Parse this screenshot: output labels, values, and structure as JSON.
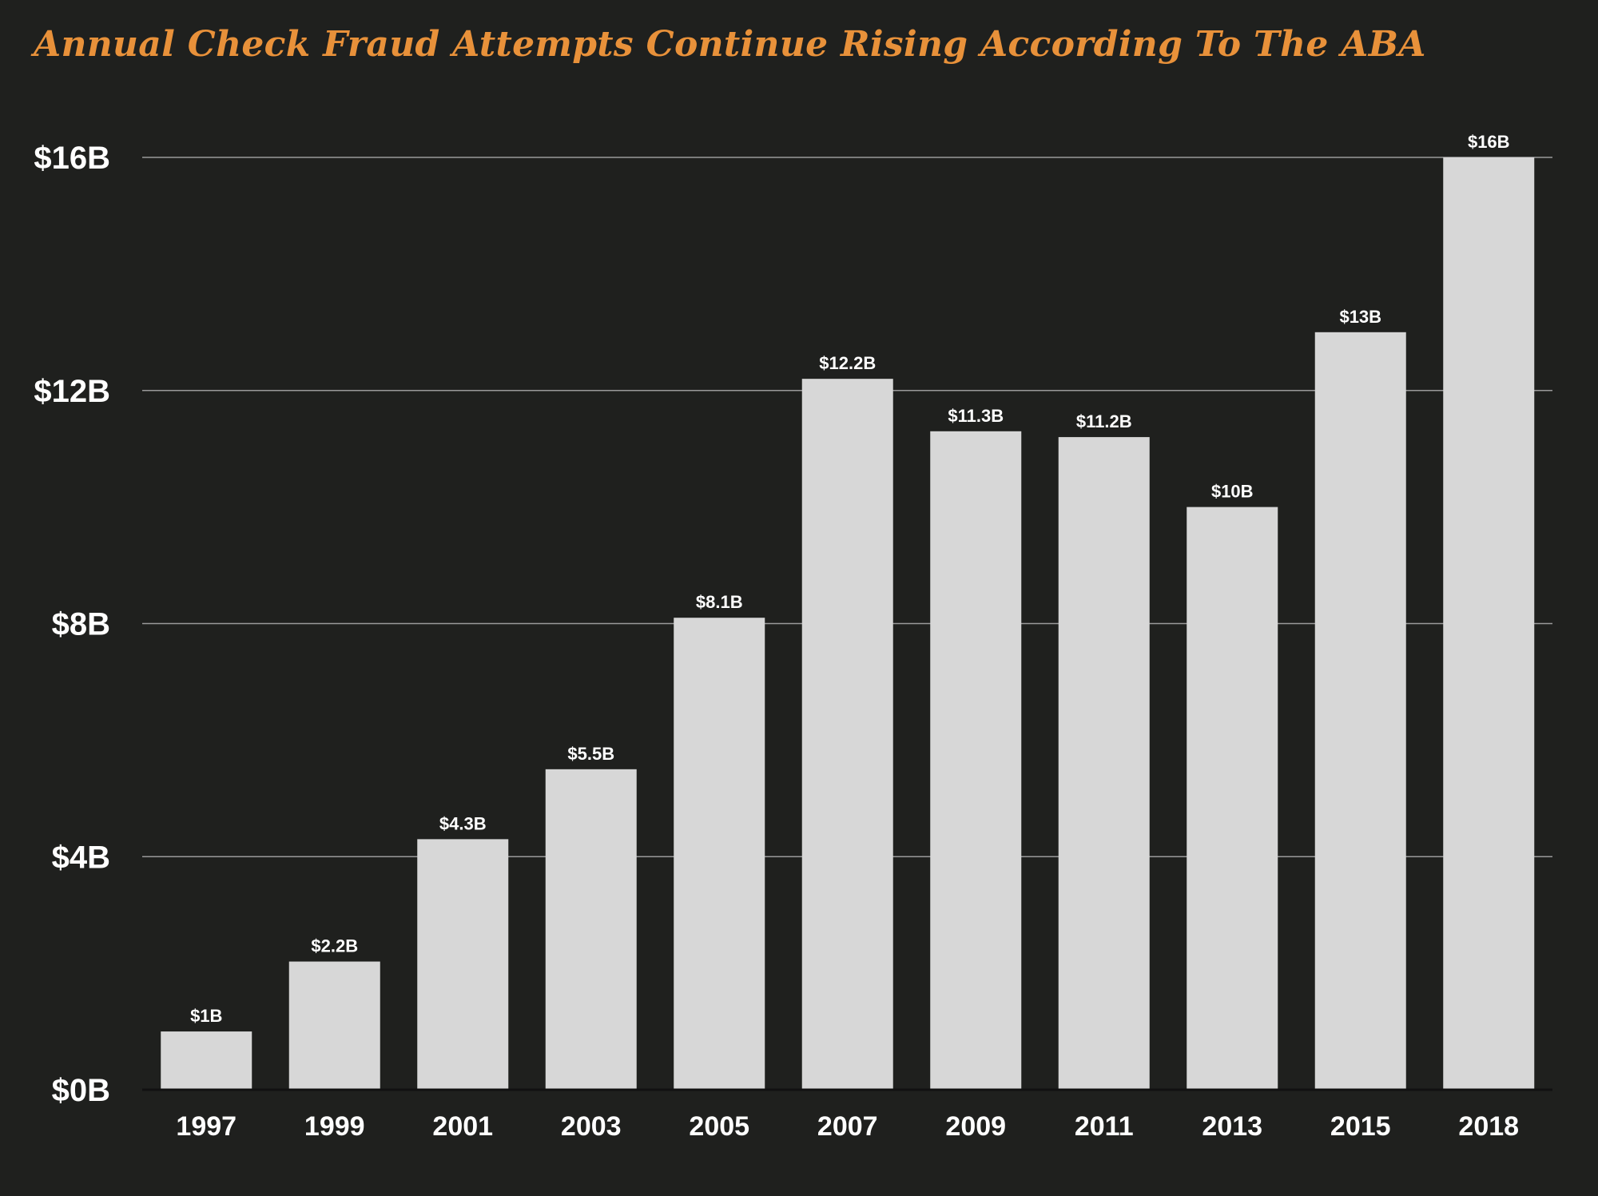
{
  "chart_data": {
    "type": "bar",
    "title": "Annual Check Fraud Attempts Continue Rising According To The ABA",
    "xlabel": "",
    "ylabel": "",
    "categories": [
      "1997",
      "1999",
      "2001",
      "2003",
      "2005",
      "2007",
      "2009",
      "2011",
      "2013",
      "2015",
      "2018"
    ],
    "values": [
      1,
      2.2,
      4.3,
      5.5,
      8.1,
      12.2,
      11.3,
      11.2,
      10,
      13,
      16
    ],
    "data_labels": [
      "$1B",
      "$2.2B",
      "$4.3B",
      "$5.5B",
      "$8.1B",
      "$12.2B",
      "$11.3B",
      "$11.2B",
      "$10B",
      "$13B",
      "$16B"
    ],
    "ylim": [
      0,
      16
    ],
    "yticks": [
      0,
      4,
      8,
      12,
      16
    ],
    "ytick_labels": [
      "$0B",
      "$4B",
      "$8B",
      "$12B",
      "$16B"
    ],
    "grid": true,
    "legend": "none"
  },
  "colors": {
    "background": "#1f201e",
    "title": "#e8913a",
    "bar": "#d7d7d7",
    "gridline": "#9a9a9a",
    "text": "#ffffff"
  }
}
